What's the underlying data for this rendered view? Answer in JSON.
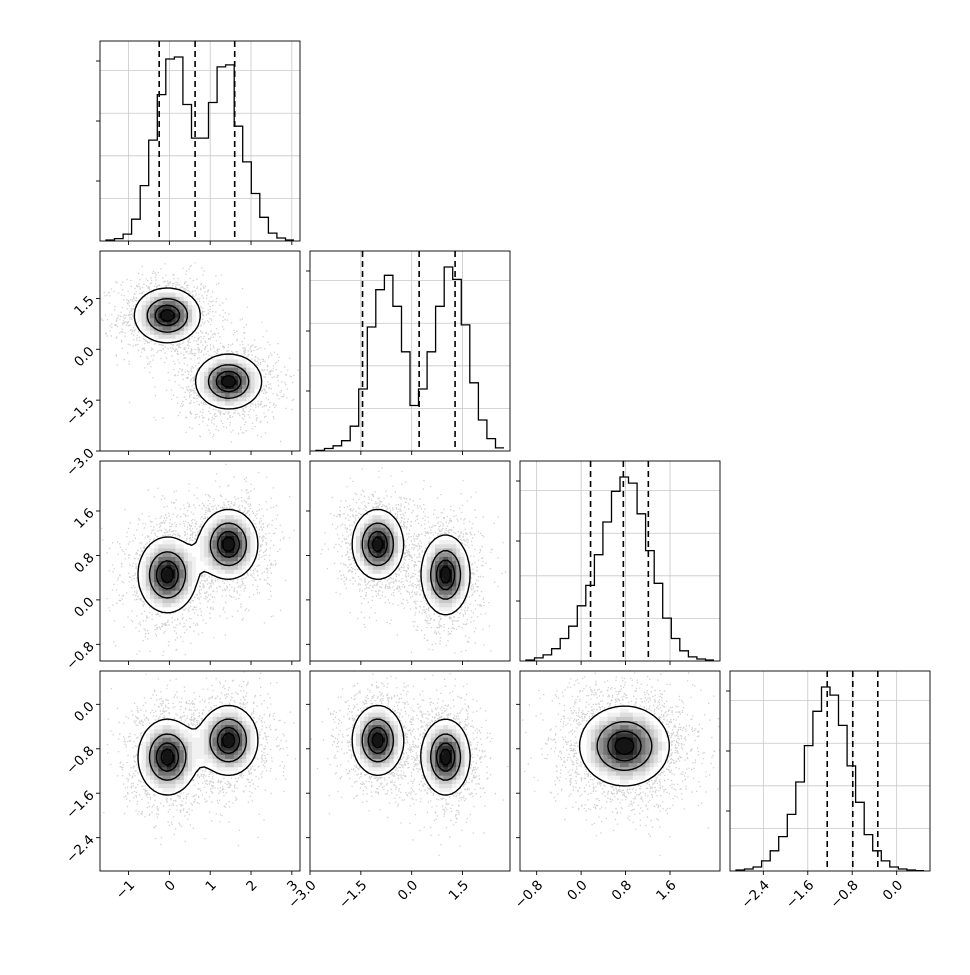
{
  "chart_data": {
    "type": "corner",
    "title": "",
    "dimensions": [
      {
        "name": "",
        "range": [
          -1.7,
          3.2
        ],
        "ticks": [
          -1,
          0,
          1,
          2,
          3
        ],
        "tick_labels": [
          "−1",
          "0",
          "1",
          "2",
          "3"
        ],
        "quantiles": [
          -0.25,
          0.63,
          1.6
        ],
        "histogram": [
          0.005,
          0.012,
          0.035,
          0.11,
          0.28,
          0.51,
          0.74,
          0.92,
          0.93,
          0.69,
          0.52,
          0.52,
          0.7,
          0.88,
          0.89,
          0.58,
          0.4,
          0.24,
          0.12,
          0.04,
          0.015,
          0.005
        ]
      },
      {
        "name": "",
        "range": [
          -3.0,
          2.9
        ],
        "ticks": [
          -3.0,
          -1.5,
          0.0,
          1.5
        ],
        "tick_labels": [
          "−3.0",
          "−1.5",
          "0.0",
          "1.5"
        ],
        "quantiles": [
          -1.45,
          0.22,
          1.28
        ],
        "histogram": [
          0.003,
          0.012,
          0.025,
          0.05,
          0.12,
          0.3,
          0.6,
          0.78,
          0.85,
          0.7,
          0.48,
          0.22,
          0.3,
          0.48,
          0.7,
          0.89,
          0.83,
          0.61,
          0.33,
          0.15,
          0.06,
          0.015
        ]
      },
      {
        "name": "",
        "range": [
          -1.1,
          2.5
        ],
        "ticks": [
          -0.8,
          0.0,
          0.8,
          1.6
        ],
        "tick_labels": [
          "−0.8",
          "0.0",
          "0.8",
          "1.6"
        ],
        "quantiles": [
          0.17,
          0.76,
          1.21
        ],
        "histogram": [
          0.005,
          0.015,
          0.03,
          0.06,
          0.11,
          0.17,
          0.27,
          0.37,
          0.52,
          0.68,
          0.83,
          0.9,
          0.87,
          0.72,
          0.54,
          0.38,
          0.21,
          0.11,
          0.05,
          0.02,
          0.01,
          0.005
        ]
      },
      {
        "name": "",
        "range": [
          -3.0,
          0.6
        ],
        "ticks": [
          -2.4,
          -1.6,
          -0.8,
          0.0
        ],
        "tick_labels": [
          "−2.4",
          "−1.6",
          "−0.8",
          "0.0"
        ],
        "quantiles": [
          -1.25,
          -0.79,
          -0.34
        ],
        "histogram": [
          0.005,
          0.01,
          0.02,
          0.05,
          0.1,
          0.17,
          0.28,
          0.44,
          0.62,
          0.79,
          0.91,
          0.87,
          0.72,
          0.52,
          0.34,
          0.18,
          0.1,
          0.05,
          0.02,
          0.01,
          0.005,
          0.002
        ]
      }
    ],
    "pairs": [
      {
        "x_dim": 0,
        "y_dim": 1,
        "modes": [
          {
            "cx": -0.05,
            "cy": 1.0,
            "sx": 0.45,
            "sy": 0.45,
            "w": 0.5
          },
          {
            "cx": 1.45,
            "cy": -0.95,
            "sx": 0.45,
            "sy": 0.45,
            "w": 0.5
          }
        ]
      },
      {
        "x_dim": 0,
        "y_dim": 2,
        "modes": [
          {
            "cx": -0.05,
            "cy": 0.45,
            "sx": 0.4,
            "sy": 0.38,
            "w": 0.5
          },
          {
            "cx": 1.45,
            "cy": 1.0,
            "sx": 0.4,
            "sy": 0.35,
            "w": 0.5
          }
        ]
      },
      {
        "x_dim": 1,
        "y_dim": 2,
        "modes": [
          {
            "cx": -1.0,
            "cy": 1.0,
            "sx": 0.42,
            "sy": 0.35,
            "w": 0.5
          },
          {
            "cx": 1.0,
            "cy": 0.45,
            "sx": 0.4,
            "sy": 0.4,
            "w": 0.5
          }
        ]
      },
      {
        "x_dim": 0,
        "y_dim": 3,
        "modes": [
          {
            "cx": -0.05,
            "cy": -0.95,
            "sx": 0.4,
            "sy": 0.38,
            "w": 0.5
          },
          {
            "cx": 1.45,
            "cy": -0.65,
            "sx": 0.4,
            "sy": 0.35,
            "w": 0.5
          }
        ]
      },
      {
        "x_dim": 1,
        "y_dim": 3,
        "modes": [
          {
            "cx": -1.0,
            "cy": -0.65,
            "sx": 0.42,
            "sy": 0.35,
            "w": 0.5
          },
          {
            "cx": 1.0,
            "cy": -0.95,
            "sx": 0.4,
            "sy": 0.38,
            "w": 0.5
          }
        ]
      },
      {
        "x_dim": 2,
        "y_dim": 3,
        "modes": [
          {
            "cx": 0.78,
            "cy": -0.75,
            "sx": 0.45,
            "sy": 0.4,
            "w": 1.0
          }
        ]
      }
    ],
    "contour_levels": [
      0.3,
      0.55,
      0.8,
      0.93
    ],
    "grid": true,
    "legend": "none"
  }
}
